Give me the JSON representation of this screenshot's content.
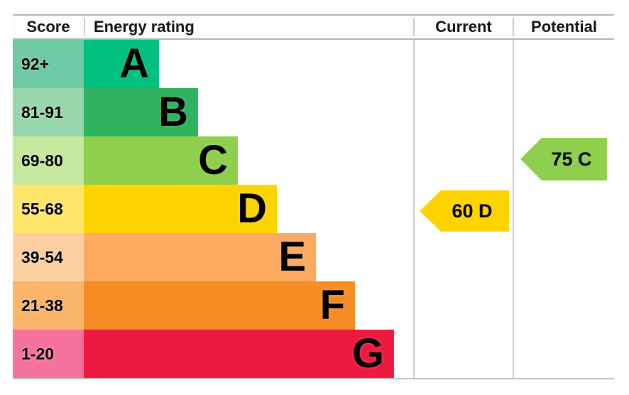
{
  "columns": {
    "score": "Score",
    "energy_rating": "Energy rating",
    "current": "Current",
    "potential": "Potential"
  },
  "bands": [
    {
      "letter": "A",
      "score_range": "92+",
      "bar_color": "#00c07e",
      "score_bg_color": "#6ec9a4"
    },
    {
      "letter": "B",
      "score_range": "81-91",
      "bar_color": "#2fb35f",
      "score_bg_color": "#98d6ab"
    },
    {
      "letter": "C",
      "score_range": "69-80",
      "bar_color": "#8ed04e",
      "score_bg_color": "#c6e79e"
    },
    {
      "letter": "D",
      "score_range": "55-68",
      "bar_color": "#fed400",
      "score_bg_color": "#ffe66b"
    },
    {
      "letter": "E",
      "score_range": "39-54",
      "bar_color": "#fbaa60",
      "score_bg_color": "#fccfa0"
    },
    {
      "letter": "F",
      "score_range": "21-38",
      "bar_color": "#f68d24",
      "score_bg_color": "#fab569"
    },
    {
      "letter": "G",
      "score_range": "1-20",
      "bar_color": "#ee1941",
      "score_bg_color": "#f4729b"
    }
  ],
  "current": {
    "label": "60 D",
    "score": 60,
    "band": "D",
    "arrow_color": "#fed400"
  },
  "potential": {
    "label": "75 C",
    "score": 75,
    "band": "C",
    "arrow_color": "#8ed04e"
  },
  "chart_data": {
    "type": "bar",
    "title": "Energy rating",
    "orientation": "horizontal",
    "categories": [
      "A",
      "B",
      "C",
      "D",
      "E",
      "F",
      "G"
    ],
    "category_score_ranges": [
      "92+",
      "81-91",
      "69-80",
      "55-68",
      "39-54",
      "21-38",
      "1-20"
    ],
    "values": [
      1,
      2,
      3,
      4,
      5,
      6,
      7
    ],
    "value_note": "bar lengths increase linearly from A (shortest) to G (longest)",
    "bar_colors": [
      "#00c07e",
      "#2fb35f",
      "#8ed04e",
      "#fed400",
      "#fbaa60",
      "#f68d24",
      "#ee1941"
    ],
    "markers": [
      {
        "name": "Current",
        "value": 60,
        "band": "D",
        "color": "#fed400"
      },
      {
        "name": "Potential",
        "value": 75,
        "band": "C",
        "color": "#8ed04e"
      }
    ],
    "columns": [
      "Score",
      "Energy rating",
      "Current",
      "Potential"
    ],
    "grid": false,
    "legend": false
  }
}
